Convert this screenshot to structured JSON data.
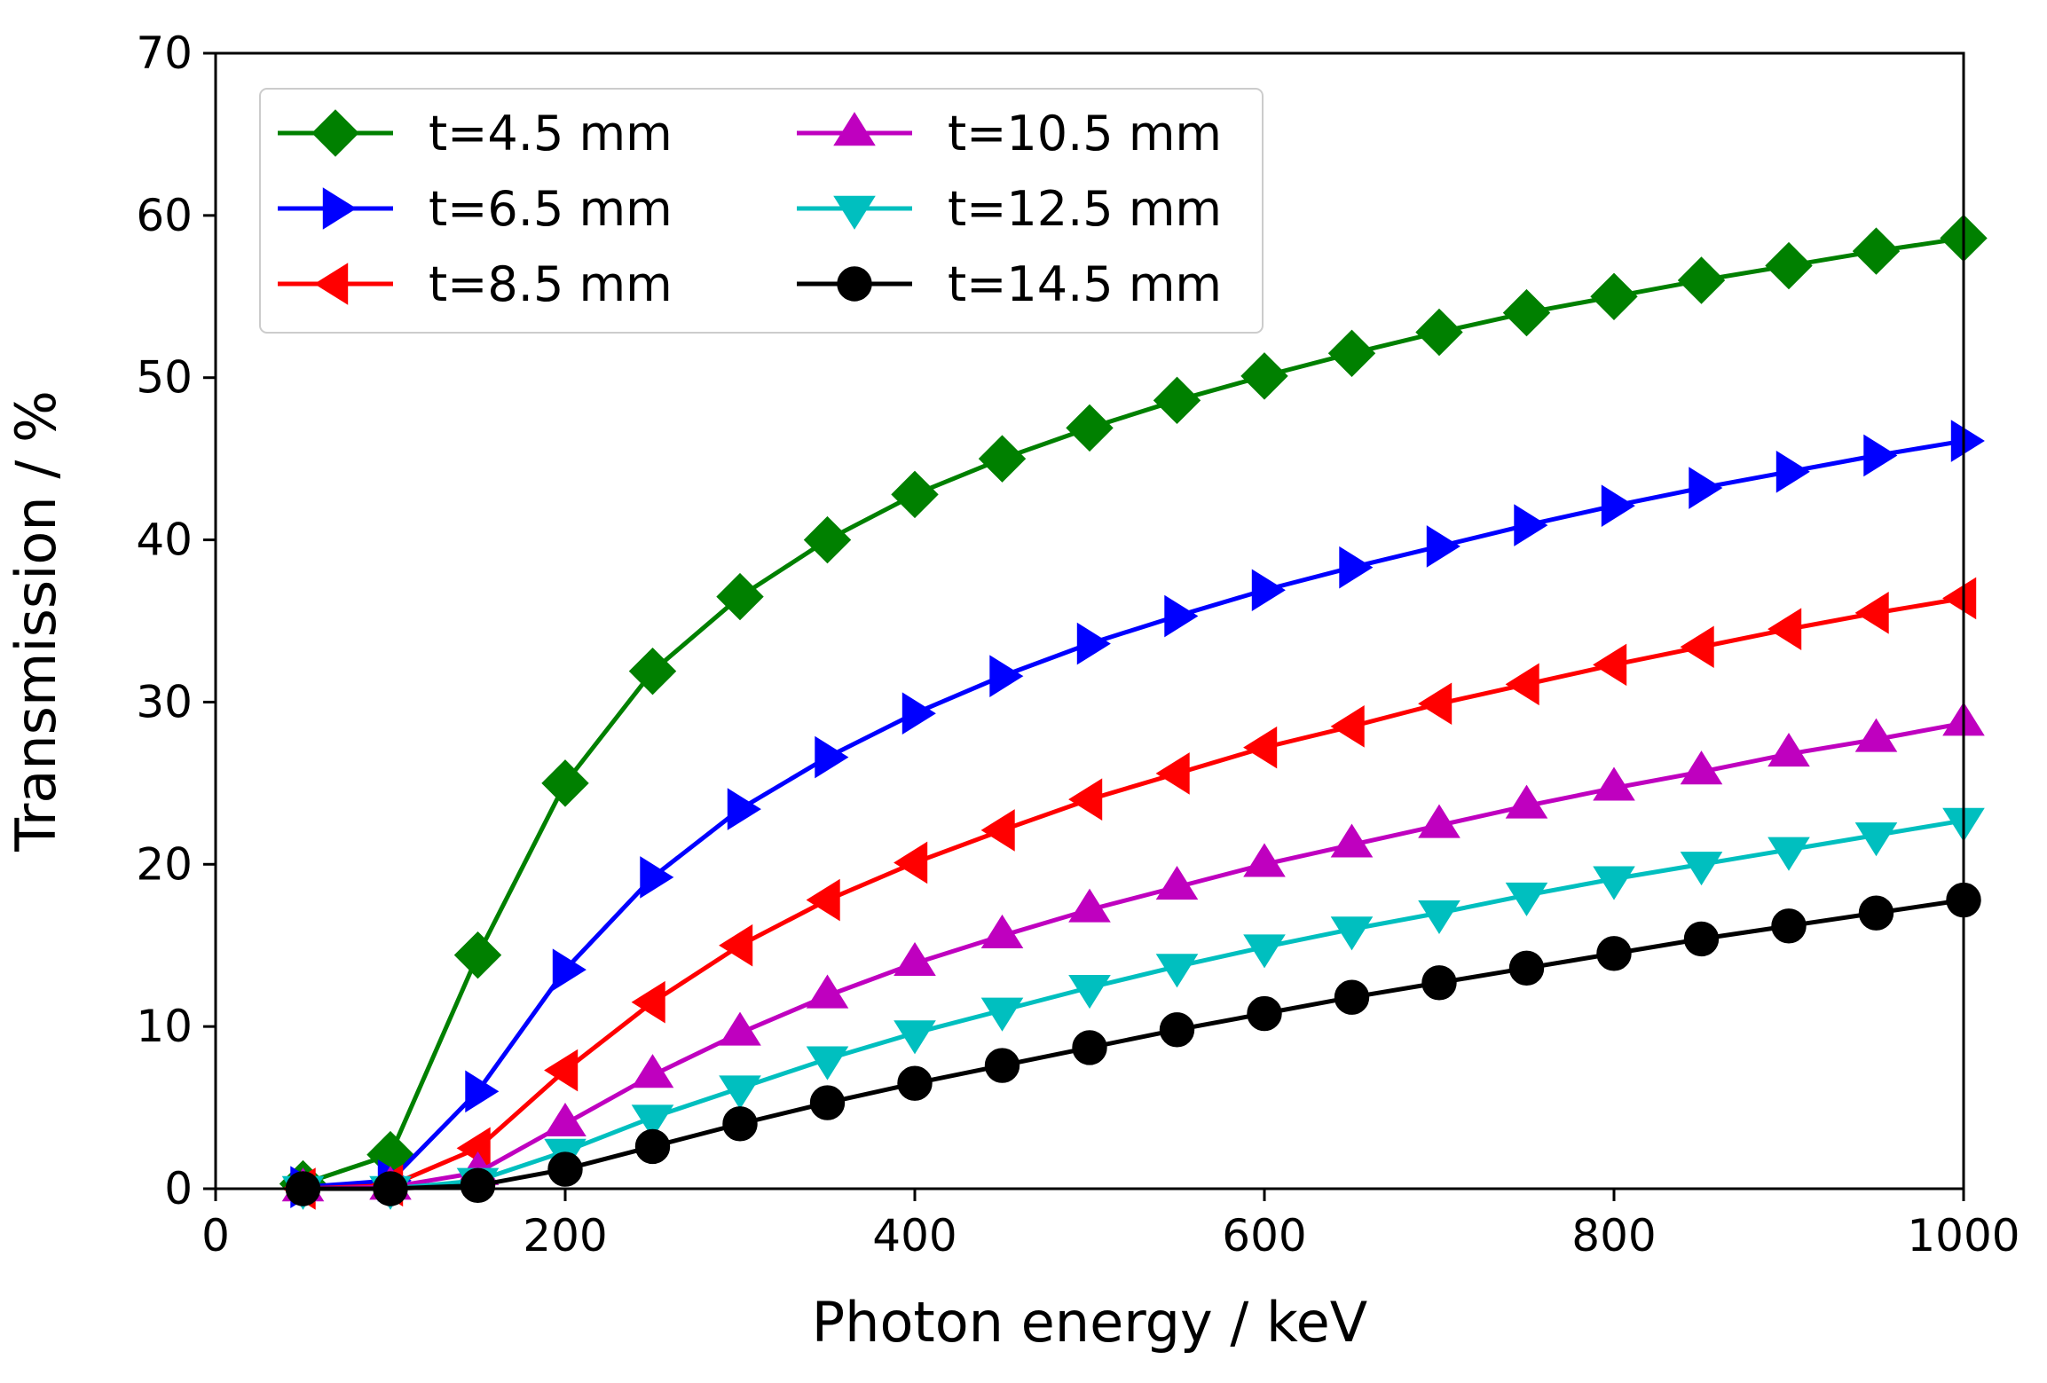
{
  "chart_data": {
    "type": "line",
    "title": "",
    "xlabel": "Photon energy / keV",
    "ylabel": "Transmission / %",
    "xlim": [
      0,
      1000
    ],
    "ylim": [
      0,
      70
    ],
    "xticks": [
      0,
      200,
      400,
      600,
      800,
      1000
    ],
    "yticks": [
      0,
      10,
      20,
      30,
      40,
      50,
      60,
      70
    ],
    "grid": false,
    "legend_position": "top-left",
    "x": [
      50,
      100,
      150,
      200,
      250,
      300,
      350,
      400,
      450,
      500,
      550,
      600,
      650,
      700,
      750,
      800,
      850,
      900,
      950,
      1000
    ],
    "series": [
      {
        "name": "t=4.5 mm",
        "color": "#008000",
        "marker": "diamond",
        "values": [
          0.3,
          2.1,
          14.4,
          25.0,
          31.9,
          36.5,
          40.0,
          42.8,
          45.0,
          46.9,
          48.6,
          50.1,
          51.5,
          52.8,
          54.0,
          55.0,
          56.0,
          56.9,
          57.8,
          58.6
        ]
      },
      {
        "name": "t=6.5 mm",
        "color": "#0000ff",
        "marker": "triangle-right",
        "values": [
          0.1,
          0.5,
          6.0,
          13.5,
          19.2,
          23.4,
          26.6,
          29.3,
          31.6,
          33.6,
          35.3,
          36.9,
          38.3,
          39.6,
          40.9,
          42.1,
          43.2,
          44.2,
          45.2,
          46.1
        ]
      },
      {
        "name": "t=8.5 mm",
        "color": "#ff0000",
        "marker": "triangle-left",
        "values": [
          0.0,
          0.2,
          2.5,
          7.3,
          11.5,
          15.0,
          17.8,
          20.1,
          22.1,
          24.0,
          25.6,
          27.2,
          28.5,
          29.9,
          31.1,
          32.3,
          33.4,
          34.5,
          35.5,
          36.4
        ]
      },
      {
        "name": "t=10.5 mm",
        "color": "#bf00bf",
        "marker": "triangle-up",
        "values": [
          0.0,
          0.1,
          1.0,
          4.0,
          7.0,
          9.6,
          11.9,
          13.9,
          15.6,
          17.2,
          18.6,
          20.0,
          21.2,
          22.4,
          23.6,
          24.7,
          25.7,
          26.8,
          27.7,
          28.7
        ]
      },
      {
        "name": "t=12.5 mm",
        "color": "#00bfbf",
        "marker": "triangle-down",
        "values": [
          0.0,
          0.0,
          0.5,
          2.3,
          4.4,
          6.2,
          8.0,
          9.6,
          11.0,
          12.4,
          13.7,
          14.9,
          16.0,
          17.0,
          18.1,
          19.1,
          20.0,
          20.9,
          21.8,
          22.7
        ]
      },
      {
        "name": "t=14.5 mm",
        "color": "#000000",
        "marker": "circle",
        "values": [
          0.0,
          0.0,
          0.2,
          1.2,
          2.6,
          4.0,
          5.3,
          6.5,
          7.6,
          8.7,
          9.8,
          10.8,
          11.8,
          12.7,
          13.6,
          14.5,
          15.4,
          16.2,
          17.0,
          17.8
        ]
      }
    ]
  }
}
